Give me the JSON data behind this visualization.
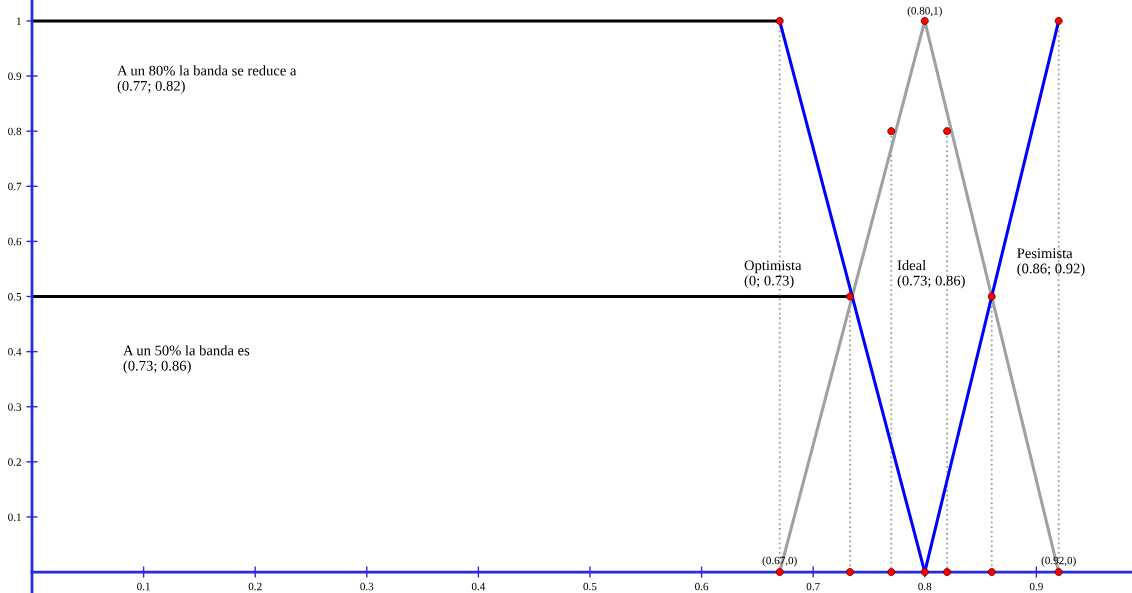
{
  "chart_data": {
    "type": "line",
    "xlim": [
      0,
      0.9857
    ],
    "ylim": [
      -0.038,
      1.038
    ],
    "xticks": [
      0.1,
      0.2,
      0.3,
      0.4,
      0.5,
      0.6,
      0.7,
      0.8,
      0.9
    ],
    "yticks": [
      0.1,
      0.2,
      0.3,
      0.4,
      0.5,
      0.6,
      0.7,
      0.8,
      0.9,
      1
    ],
    "grid": false,
    "legend": false,
    "series": [
      {
        "type": "line",
        "color": "#000000",
        "x": [
          0,
          0.67
        ],
        "values": [
          1,
          1
        ],
        "line_style": "solid",
        "marker": "none"
      },
      {
        "type": "line",
        "color": "#000000",
        "x": [
          0,
          0.733
        ],
        "values": [
          0.5,
          0.5
        ],
        "line_style": "solid",
        "marker": "none"
      },
      {
        "type": "line",
        "color": "#a0a0a0",
        "x": [
          0.67,
          0.67
        ],
        "values": [
          1,
          0
        ],
        "line_style": "dotted",
        "marker": "none"
      },
      {
        "type": "line",
        "color": "#a0a0a0",
        "x": [
          0.733,
          0.733
        ],
        "values": [
          0.5,
          0
        ],
        "line_style": "dotted",
        "marker": "none"
      },
      {
        "type": "line",
        "color": "#a0a0a0",
        "x": [
          0.77,
          0.77
        ],
        "values": [
          0.8,
          0
        ],
        "line_style": "dotted",
        "marker": "none"
      },
      {
        "type": "line",
        "color": "#a0a0a0",
        "x": [
          0.82,
          0.82
        ],
        "values": [
          0.8,
          0
        ],
        "line_style": "dotted",
        "marker": "none"
      },
      {
        "type": "line",
        "color": "#a0a0a0",
        "x": [
          0.86,
          0.86
        ],
        "values": [
          0.5,
          0
        ],
        "line_style": "dotted",
        "marker": "none"
      },
      {
        "type": "line",
        "color": "#a0a0a0",
        "x": [
          0.92,
          0.92
        ],
        "values": [
          1,
          0
        ],
        "line_style": "dotted",
        "marker": "none"
      },
      {
        "type": "line",
        "color": "#a0a0a0",
        "x": [
          0.67,
          0.8,
          0.92
        ],
        "values": [
          0,
          1,
          0
        ],
        "line_style": "solid",
        "marker": "none"
      },
      {
        "type": "line",
        "color": "#0000ff",
        "x": [
          0.67,
          0.8,
          0.92
        ],
        "values": [
          1,
          0,
          1
        ],
        "line_style": "solid",
        "marker": "none"
      },
      {
        "type": "scatter",
        "color": "#ff0000",
        "x": [
          0.67,
          0.8,
          0.92,
          0.77,
          0.82,
          0.733,
          0.86,
          0.67,
          0.733,
          0.77,
          0.8,
          0.82,
          0.86,
          0.92
        ],
        "values": [
          1,
          1,
          1,
          0.8,
          0.8,
          0.5,
          0.5,
          0,
          0,
          0,
          0,
          0,
          0,
          0
        ],
        "marker": "circle"
      }
    ],
    "annotations": [
      "A un 80% la banda se reduce a\n(0.77; 0.82)",
      "A un 50% la banda es\n(0.73; 0.86)",
      "Optimista\n(0; 0.73)",
      "Ideal\n(0.73; 0.86)",
      {
        "text": "Pesimista\n(0.86; 0.92)",
        "x": 0.86,
        "y": 0.5
      },
      {
        "text": "(0.80,1)",
        "x": 0.8,
        "y": 1
      },
      {
        "text": "(0.67,0)",
        "x": 0.67,
        "y": 0
      },
      {
        "text": "(0.92,0)",
        "x": 0.92,
        "y": 0
      }
    ]
  }
}
